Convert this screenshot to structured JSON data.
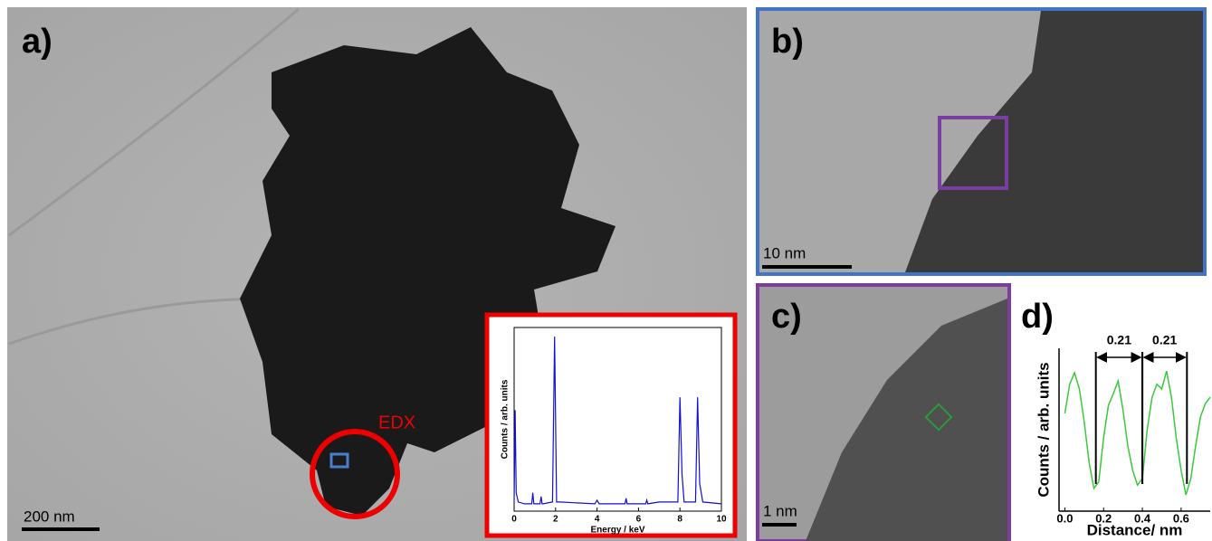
{
  "panels": [
    {
      "label": "a)",
      "scale_bar": "200 nm",
      "annotation": "EDX"
    },
    {
      "label": "b)",
      "scale_bar": "10 nm"
    },
    {
      "label": "c)",
      "scale_bar": "1 nm"
    },
    {
      "label": "d)"
    }
  ],
  "chart_data": [
    {
      "type": "line",
      "x_label": "Energy / keV",
      "y_label": "Counts / arb. units",
      "x": [
        0,
        0.05,
        0.1,
        0.2,
        0.5,
        0.85,
        0.9,
        0.95,
        1.0,
        1.25,
        1.3,
        1.35,
        1.4,
        1.85,
        1.95,
        2.05,
        2.2,
        3.9,
        4.0,
        4.1,
        5.35,
        5.4,
        5.45,
        6.35,
        6.4,
        6.45,
        7.0,
        7.9,
        8.0,
        8.1,
        8.2,
        8.75,
        8.85,
        8.95,
        9.1,
        10
      ],
      "series": [
        {
          "color": "#1010d0",
          "values": [
            5,
            55,
            10,
            5,
            4,
            4,
            10,
            4,
            4,
            4,
            8,
            4,
            4,
            5,
            95,
            5,
            5,
            4,
            6,
            4,
            4,
            7,
            4,
            4,
            6,
            4,
            5,
            5,
            62,
            20,
            5,
            5,
            62,
            15,
            5,
            4
          ]
        }
      ],
      "xlim": [
        0,
        10
      ],
      "xticks": [
        0,
        2,
        4,
        6,
        8,
        10
      ],
      "ylim": [
        0,
        100
      ]
    },
    {
      "type": "line",
      "x_label": "Distance/ nm",
      "y_label": "Counts / arb. units",
      "x": [
        0,
        0.025,
        0.05,
        0.075,
        0.1,
        0.125,
        0.15,
        0.175,
        0.2,
        0.225,
        0.25,
        0.275,
        0.3,
        0.325,
        0.35,
        0.375,
        0.4,
        0.425,
        0.45,
        0.475,
        0.5,
        0.525,
        0.55,
        0.575,
        0.6,
        0.625,
        0.65,
        0.675,
        0.7,
        0.725,
        0.75
      ],
      "series": [
        {
          "color": "#3cc83c",
          "values": [
            60,
            78,
            85,
            75,
            55,
            30,
            14,
            18,
            45,
            65,
            72,
            80,
            62,
            40,
            25,
            16,
            20,
            50,
            70,
            78,
            75,
            86,
            70,
            45,
            25,
            10,
            20,
            40,
            58,
            66,
            70
          ]
        }
      ],
      "xlim": [
        -0.03,
        0.75
      ],
      "xticks": [
        {
          "value": 0,
          "label": "0.0"
        },
        0.2,
        0.4,
        0.6
      ],
      "ylim": [
        0,
        100
      ],
      "annotations": [
        {
          "text": "0.21",
          "x": [
            0.16,
            0.4
          ]
        },
        {
          "text": "0.21",
          "x": [
            0.4,
            0.63
          ]
        }
      ]
    }
  ]
}
